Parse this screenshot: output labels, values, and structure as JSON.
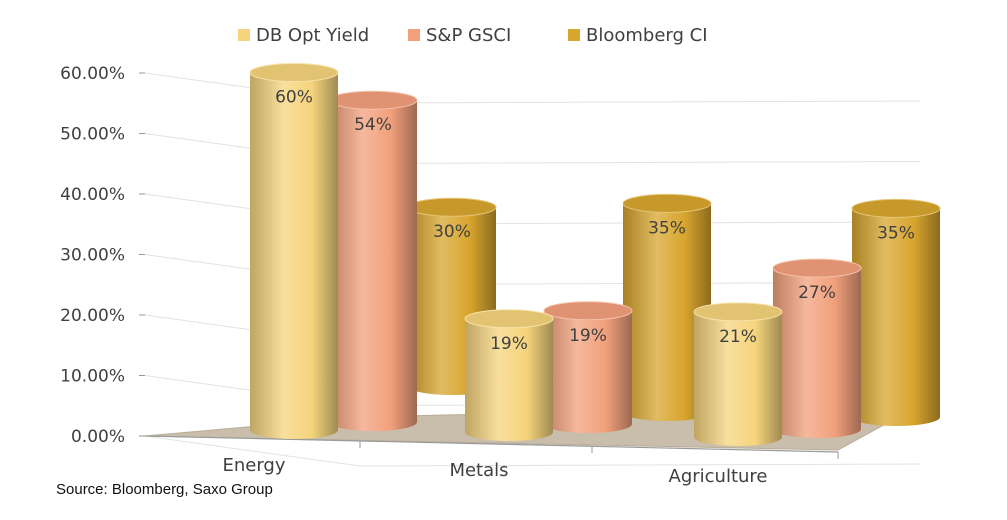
{
  "chart_data": {
    "type": "bar",
    "style": "3d-cylinder",
    "categories": [
      "Energy",
      "Metals",
      "Agriculture"
    ],
    "series": [
      {
        "name": "DB Opt Yield",
        "values": [
          60,
          19,
          21
        ],
        "labels": [
          "60%",
          "19%",
          "21%"
        ],
        "color": "#f5d47c"
      },
      {
        "name": "S&P GSCI",
        "values": [
          54,
          19,
          27
        ],
        "labels": [
          "54%",
          "19%",
          "27%"
        ],
        "color": "#f2a07c"
      },
      {
        "name": "Bloomberg CI",
        "values": [
          30,
          35,
          35
        ],
        "labels": [
          "30%",
          "35%",
          "35%"
        ],
        "color": "#d8a52e"
      }
    ],
    "yticks": [
      "0.00%",
      "10.00%",
      "20.00%",
      "30.00%",
      "40.00%",
      "50.00%",
      "60.00%"
    ],
    "ylim": [
      0,
      60
    ],
    "legend_position": "top-center",
    "grid": true
  },
  "source": "Source: Bloomberg, Saxo Group"
}
